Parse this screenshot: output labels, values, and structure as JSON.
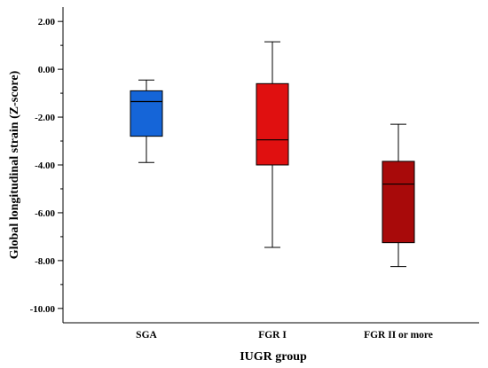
{
  "chart_data": {
    "type": "box",
    "title": "",
    "xlabel": "IUGR group",
    "ylabel": "Global longitudinal strain (Z-score)",
    "ylim": [
      -10.6,
      2.6
    ],
    "yticks": [
      2.0,
      0.0,
      -2.0,
      -4.0,
      -6.0,
      -8.0,
      -10.0
    ],
    "ytick_labels": [
      "2.00",
      "0.00",
      "-2.00",
      "-4.00",
      "-6.00",
      "-8.00",
      "-10.00"
    ],
    "grid": false,
    "categories": [
      "SGA",
      "FGR I",
      "FGR II or more"
    ],
    "boxes": [
      {
        "name": "SGA",
        "min": -3.9,
        "q1": -2.8,
        "median": -1.35,
        "q3": -0.9,
        "max": -0.45,
        "color": "#1565d8"
      },
      {
        "name": "FGR I",
        "min": -7.45,
        "q1": -4.0,
        "median": -2.95,
        "q3": -0.6,
        "max": 1.15,
        "color": "#e01010"
      },
      {
        "name": "FGR II or more",
        "min": -8.25,
        "q1": -7.25,
        "median": -4.8,
        "q3": -3.85,
        "max": -2.3,
        "color": "#a80a0a"
      }
    ]
  }
}
